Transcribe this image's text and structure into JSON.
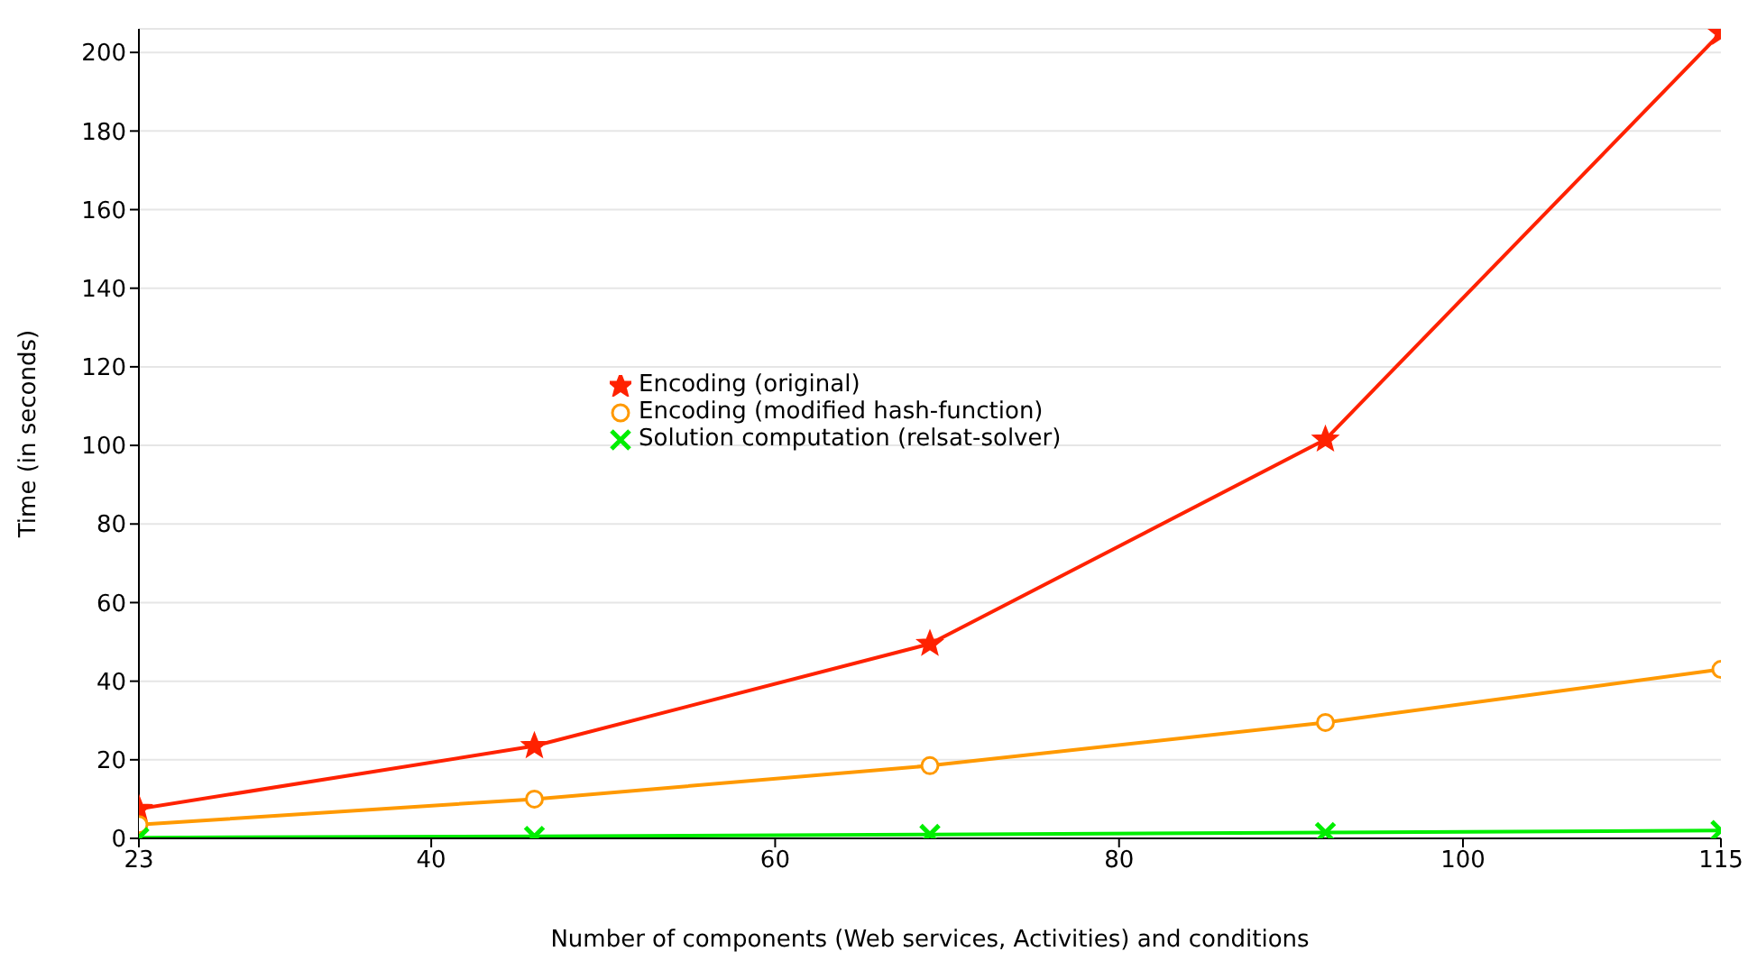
{
  "chart_data": {
    "type": "line",
    "xlabel": "Number of components (Web services, Activities) and conditions",
    "ylabel": "Time (in seconds)",
    "x": [
      23,
      46,
      69,
      92,
      115
    ],
    "series": [
      {
        "name": "Encoding (original)",
        "color": "#ff2200",
        "marker": "star",
        "values": [
          7.5,
          23.5,
          49.5,
          101.5,
          205
        ]
      },
      {
        "name": "Encoding (modified hash-function)",
        "color": "#ff9900",
        "marker": "circle",
        "values": [
          3.5,
          10,
          18.5,
          29.5,
          43
        ]
      },
      {
        "name": "Solution computation (relsat-solver)",
        "color": "#00ee00",
        "marker": "cross",
        "values": [
          0.2,
          0.5,
          1,
          1.5,
          2
        ]
      }
    ],
    "xlim": [
      23,
      115
    ],
    "xticks": [
      23,
      40,
      60,
      80,
      100,
      115
    ],
    "ylim": [
      0,
      206
    ],
    "yticks": [
      0,
      20,
      40,
      60,
      80,
      100,
      120,
      140,
      160,
      180,
      200
    ],
    "grid": "y",
    "legend": "center left",
    "line_style": "solid"
  }
}
